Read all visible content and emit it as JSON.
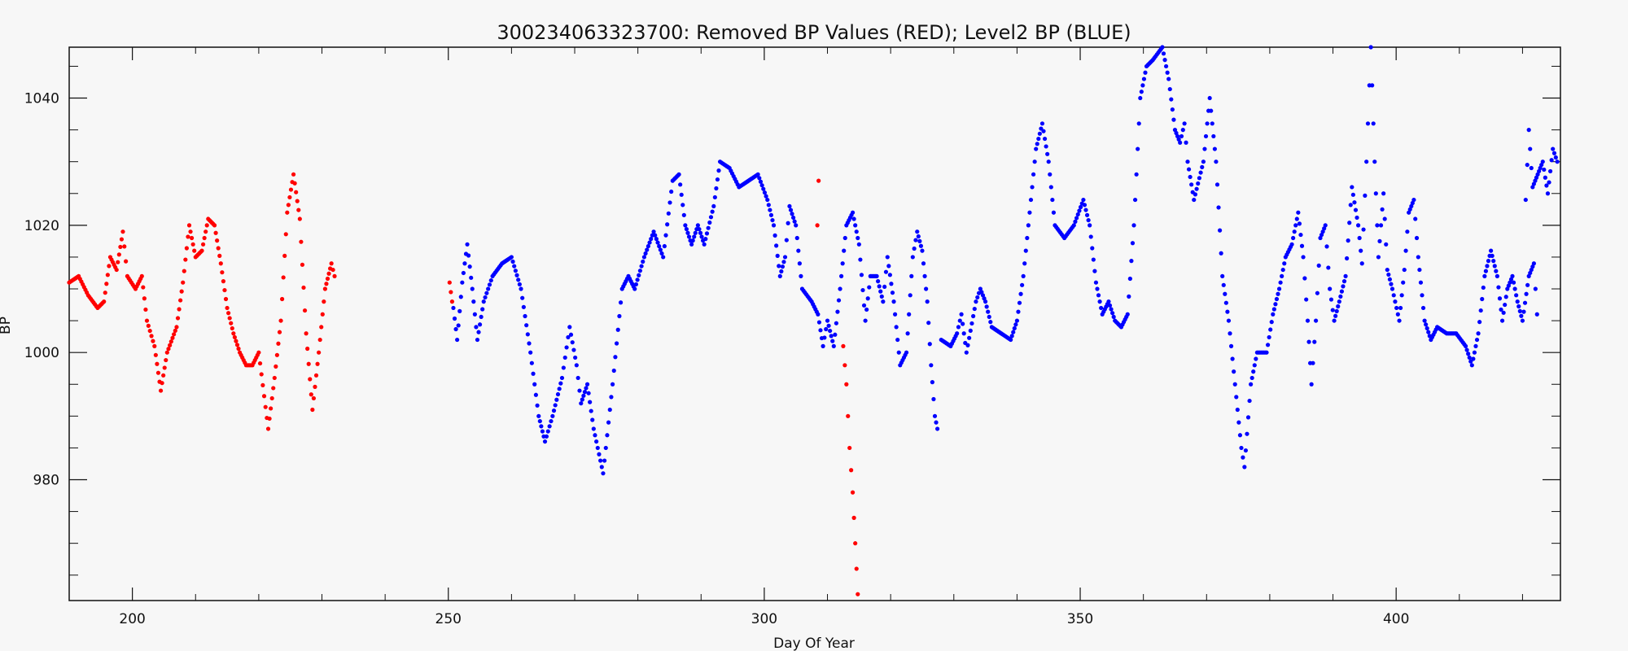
{
  "chart_data": {
    "type": "scatter",
    "title": "300234063323700: Removed BP Values (RED); Level2 BP (BLUE)",
    "xlabel": "Day Of Year",
    "ylabel": "BP",
    "xlim": [
      190,
      426
    ],
    "ylim": [
      961,
      1048
    ],
    "x_major_ticks": [
      200,
      250,
      300,
      350,
      400
    ],
    "y_major_ticks": [
      980,
      1000,
      1020,
      1040
    ],
    "grid": false,
    "colors": {
      "removed": "#ff0000",
      "level2": "#0000ff"
    },
    "series": [
      {
        "name": "Removed BP Values (RED)",
        "color": "#ff0000",
        "segments": [
          [
            [
              190,
              1011
            ],
            [
              191.5,
              1012
            ],
            [
              193,
              1009
            ],
            [
              194.5,
              1007
            ],
            [
              195.5,
              1008
            ],
            [
              196.5,
              1015
            ],
            [
              197.5,
              1013
            ],
            [
              198.5,
              1019
            ],
            [
              199.2,
              1012
            ],
            [
              200.5,
              1010
            ],
            [
              201.5,
              1012
            ],
            [
              202.3,
              1005
            ],
            [
              203.5,
              1001
            ],
            [
              204.5,
              994
            ],
            [
              205.5,
              1000
            ],
            [
              207,
              1004
            ],
            [
              208,
              1011
            ],
            [
              209,
              1020
            ],
            [
              210,
              1015
            ],
            [
              211,
              1016
            ],
            [
              212,
              1021
            ],
            [
              213,
              1020
            ],
            [
              214,
              1014
            ],
            [
              215,
              1007
            ],
            [
              216,
              1003
            ],
            [
              217,
              1000
            ],
            [
              218,
              998
            ],
            [
              219,
              998
            ],
            [
              220,
              1000
            ],
            [
              221.5,
              988
            ],
            [
              222.5,
              996
            ],
            [
              223.5,
              1005
            ],
            [
              224.5,
              1022
            ],
            [
              225.5,
              1028
            ],
            [
              226.5,
              1021
            ],
            [
              227.5,
              1003
            ],
            [
              228.5,
              991
            ],
            [
              229.5,
              1000
            ],
            [
              230.5,
              1010
            ],
            [
              231.5,
              1014
            ],
            [
              232,
              1012
            ]
          ],
          [
            [
              250.2,
              1011
            ],
            [
              250.6,
              1008
            ]
          ],
          [
            [
              308.6,
              1027
            ],
            [
              308.4,
              1020
            ]
          ],
          [
            [
              312.5,
              1001
            ],
            [
              313,
              995
            ],
            [
              313.5,
              985
            ],
            [
              314,
              978
            ],
            [
              314.4,
              970
            ],
            [
              314.8,
              962
            ]
          ]
        ]
      },
      {
        "name": "Level2 BP (BLUE)",
        "color": "#0000ff",
        "segments": [
          [
            [
              250.8,
              1007
            ],
            [
              251.4,
              1002
            ],
            [
              252.2,
              1011
            ],
            [
              253,
              1017
            ],
            [
              253.8,
              1010
            ],
            [
              254.6,
              1002
            ],
            [
              255.6,
              1008
            ],
            [
              257,
              1012
            ],
            [
              258.5,
              1014
            ],
            [
              260,
              1015
            ],
            [
              261.5,
              1010
            ],
            [
              263,
              1000
            ],
            [
              264.3,
              990
            ],
            [
              265.3,
              986
            ],
            [
              266.5,
              990
            ],
            [
              268,
              996
            ],
            [
              269.2,
              1004
            ],
            [
              270.3,
              998
            ],
            [
              271,
              992
            ],
            [
              272,
              995
            ],
            [
              273,
              988
            ],
            [
              274.5,
              981
            ],
            [
              276,
              995
            ],
            [
              277.5,
              1010
            ],
            [
              278.5,
              1012
            ],
            [
              279.5,
              1010
            ],
            [
              281,
              1015
            ],
            [
              282.5,
              1019
            ],
            [
              284,
              1015
            ],
            [
              285.5,
              1027
            ],
            [
              286.5,
              1028
            ],
            [
              287.5,
              1020
            ],
            [
              288.5,
              1017
            ],
            [
              289.5,
              1020
            ],
            [
              290.5,
              1017
            ],
            [
              292,
              1023
            ],
            [
              293,
              1030
            ],
            [
              294.5,
              1029
            ],
            [
              296,
              1026
            ],
            [
              297.5,
              1027
            ],
            [
              299,
              1028
            ],
            [
              300.5,
              1024
            ],
            [
              301.5,
              1020
            ],
            [
              302.5,
              1012
            ],
            [
              303.3,
              1015
            ],
            [
              304,
              1023
            ],
            [
              305,
              1020
            ],
            [
              306,
              1010
            ],
            [
              307.5,
              1008
            ],
            [
              308.5,
              1006
            ],
            [
              309.3,
              1001
            ],
            [
              310,
              1005
            ],
            [
              311,
              1001
            ],
            [
              312,
              1010
            ],
            [
              313,
              1020
            ],
            [
              314,
              1022
            ],
            [
              315,
              1017
            ],
            [
              316,
              1005
            ],
            [
              316.8,
              1012
            ],
            [
              317.8,
              1012
            ],
            [
              318.8,
              1008
            ],
            [
              319.5,
              1015
            ],
            [
              320.5,
              1008
            ],
            [
              321.5,
              998
            ],
            [
              322.5,
              1000
            ],
            [
              323.5,
              1015
            ],
            [
              324.2,
              1019
            ],
            [
              325,
              1016
            ],
            [
              325.8,
              1008
            ],
            [
              326.4,
              998
            ],
            [
              327,
              990
            ],
            [
              327.4,
              988
            ]
          ],
          [
            [
              328,
              1002
            ],
            [
              329.5,
              1001
            ],
            [
              330.5,
              1003
            ],
            [
              331.2,
              1006
            ],
            [
              332,
              1000
            ],
            [
              333.5,
              1008
            ],
            [
              334.2,
              1010
            ],
            [
              335,
              1008
            ],
            [
              336,
              1004
            ],
            [
              337.5,
              1003
            ],
            [
              339,
              1002
            ],
            [
              340,
              1005
            ],
            [
              341,
              1012
            ],
            [
              342,
              1022
            ],
            [
              343,
              1032
            ],
            [
              344,
              1036
            ],
            [
              345,
              1030
            ],
            [
              346,
              1020
            ],
            [
              347.5,
              1018
            ],
            [
              349,
              1020
            ],
            [
              350.5,
              1024
            ],
            [
              351.5,
              1020
            ],
            [
              352.5,
              1011
            ],
            [
              353.5,
              1006
            ],
            [
              354.5,
              1008
            ],
            [
              355.5,
              1005
            ],
            [
              356.5,
              1004
            ],
            [
              357.5,
              1006
            ],
            [
              358.5,
              1020
            ],
            [
              359.5,
              1040
            ],
            [
              360.5,
              1045
            ],
            [
              361.5,
              1046
            ],
            [
              363,
              1048
            ],
            [
              364,
              1043
            ],
            [
              365,
              1035
            ],
            [
              365.8,
              1033
            ],
            [
              366.5,
              1036
            ],
            [
              367,
              1030
            ],
            [
              368,
              1024
            ],
            [
              369.5,
              1030
            ],
            [
              370.5,
              1040
            ],
            [
              371.5,
              1030
            ],
            [
              372.5,
              1012
            ],
            [
              373.5,
              1005
            ],
            [
              374.5,
              995
            ],
            [
              375.5,
              985
            ],
            [
              376,
              982
            ],
            [
              377,
              995
            ],
            [
              378,
              1000
            ],
            [
              379.5,
              1000
            ],
            [
              380.5,
              1006
            ],
            [
              381.5,
              1010
            ],
            [
              382.5,
              1015
            ],
            [
              383.5,
              1017
            ],
            [
              384.5,
              1022
            ],
            [
              385.3,
              1015
            ],
            [
              386,
              1005
            ],
            [
              386.6,
              995
            ],
            [
              387.3,
              1005
            ],
            [
              388,
              1018
            ],
            [
              388.8,
              1020
            ],
            [
              389.5,
              1010
            ],
            [
              390.2,
              1005
            ],
            [
              391,
              1008
            ],
            [
              392,
              1012
            ],
            [
              393,
              1026
            ],
            [
              394,
              1020
            ],
            [
              394.6,
              1014
            ],
            [
              395.3,
              1030
            ],
            [
              396,
              1048
            ],
            [
              396.6,
              1030
            ],
            [
              397.2,
              1015
            ],
            [
              398,
              1025
            ],
            [
              398.6,
              1013
            ],
            [
              399.4,
              1010
            ],
            [
              400.5,
              1005
            ],
            [
              401.3,
              1013
            ],
            [
              402,
              1022
            ],
            [
              402.8,
              1024
            ],
            [
              403.5,
              1015
            ],
            [
              404.5,
              1005
            ],
            [
              405.5,
              1002
            ],
            [
              406.5,
              1004
            ],
            [
              408,
              1003
            ],
            [
              409.5,
              1003
            ],
            [
              411,
              1001
            ],
            [
              412,
              998
            ],
            [
              413,
              1003
            ],
            [
              414,
              1012
            ],
            [
              415,
              1016
            ],
            [
              416,
              1012
            ],
            [
              416.8,
              1005
            ],
            [
              417.6,
              1010
            ],
            [
              418.4,
              1012
            ],
            [
              419.2,
              1008
            ],
            [
              420,
              1005
            ],
            [
              421,
              1012
            ],
            [
              421.8,
              1014
            ],
            [
              422.3,
              1006
            ]
          ]
        ]
      },
      {
        "name": "Level2 BP (BLUE) 2",
        "color": "#0000ff",
        "segments": [
          [
            [
              420.5,
              1024
            ],
            [
              421,
              1035
            ],
            [
              421.6,
              1026
            ],
            [
              422.4,
              1028
            ],
            [
              423.2,
              1030
            ],
            [
              424,
              1025
            ],
            [
              424.8,
              1032
            ],
            [
              425.5,
              1030
            ]
          ]
        ]
      }
    ]
  }
}
